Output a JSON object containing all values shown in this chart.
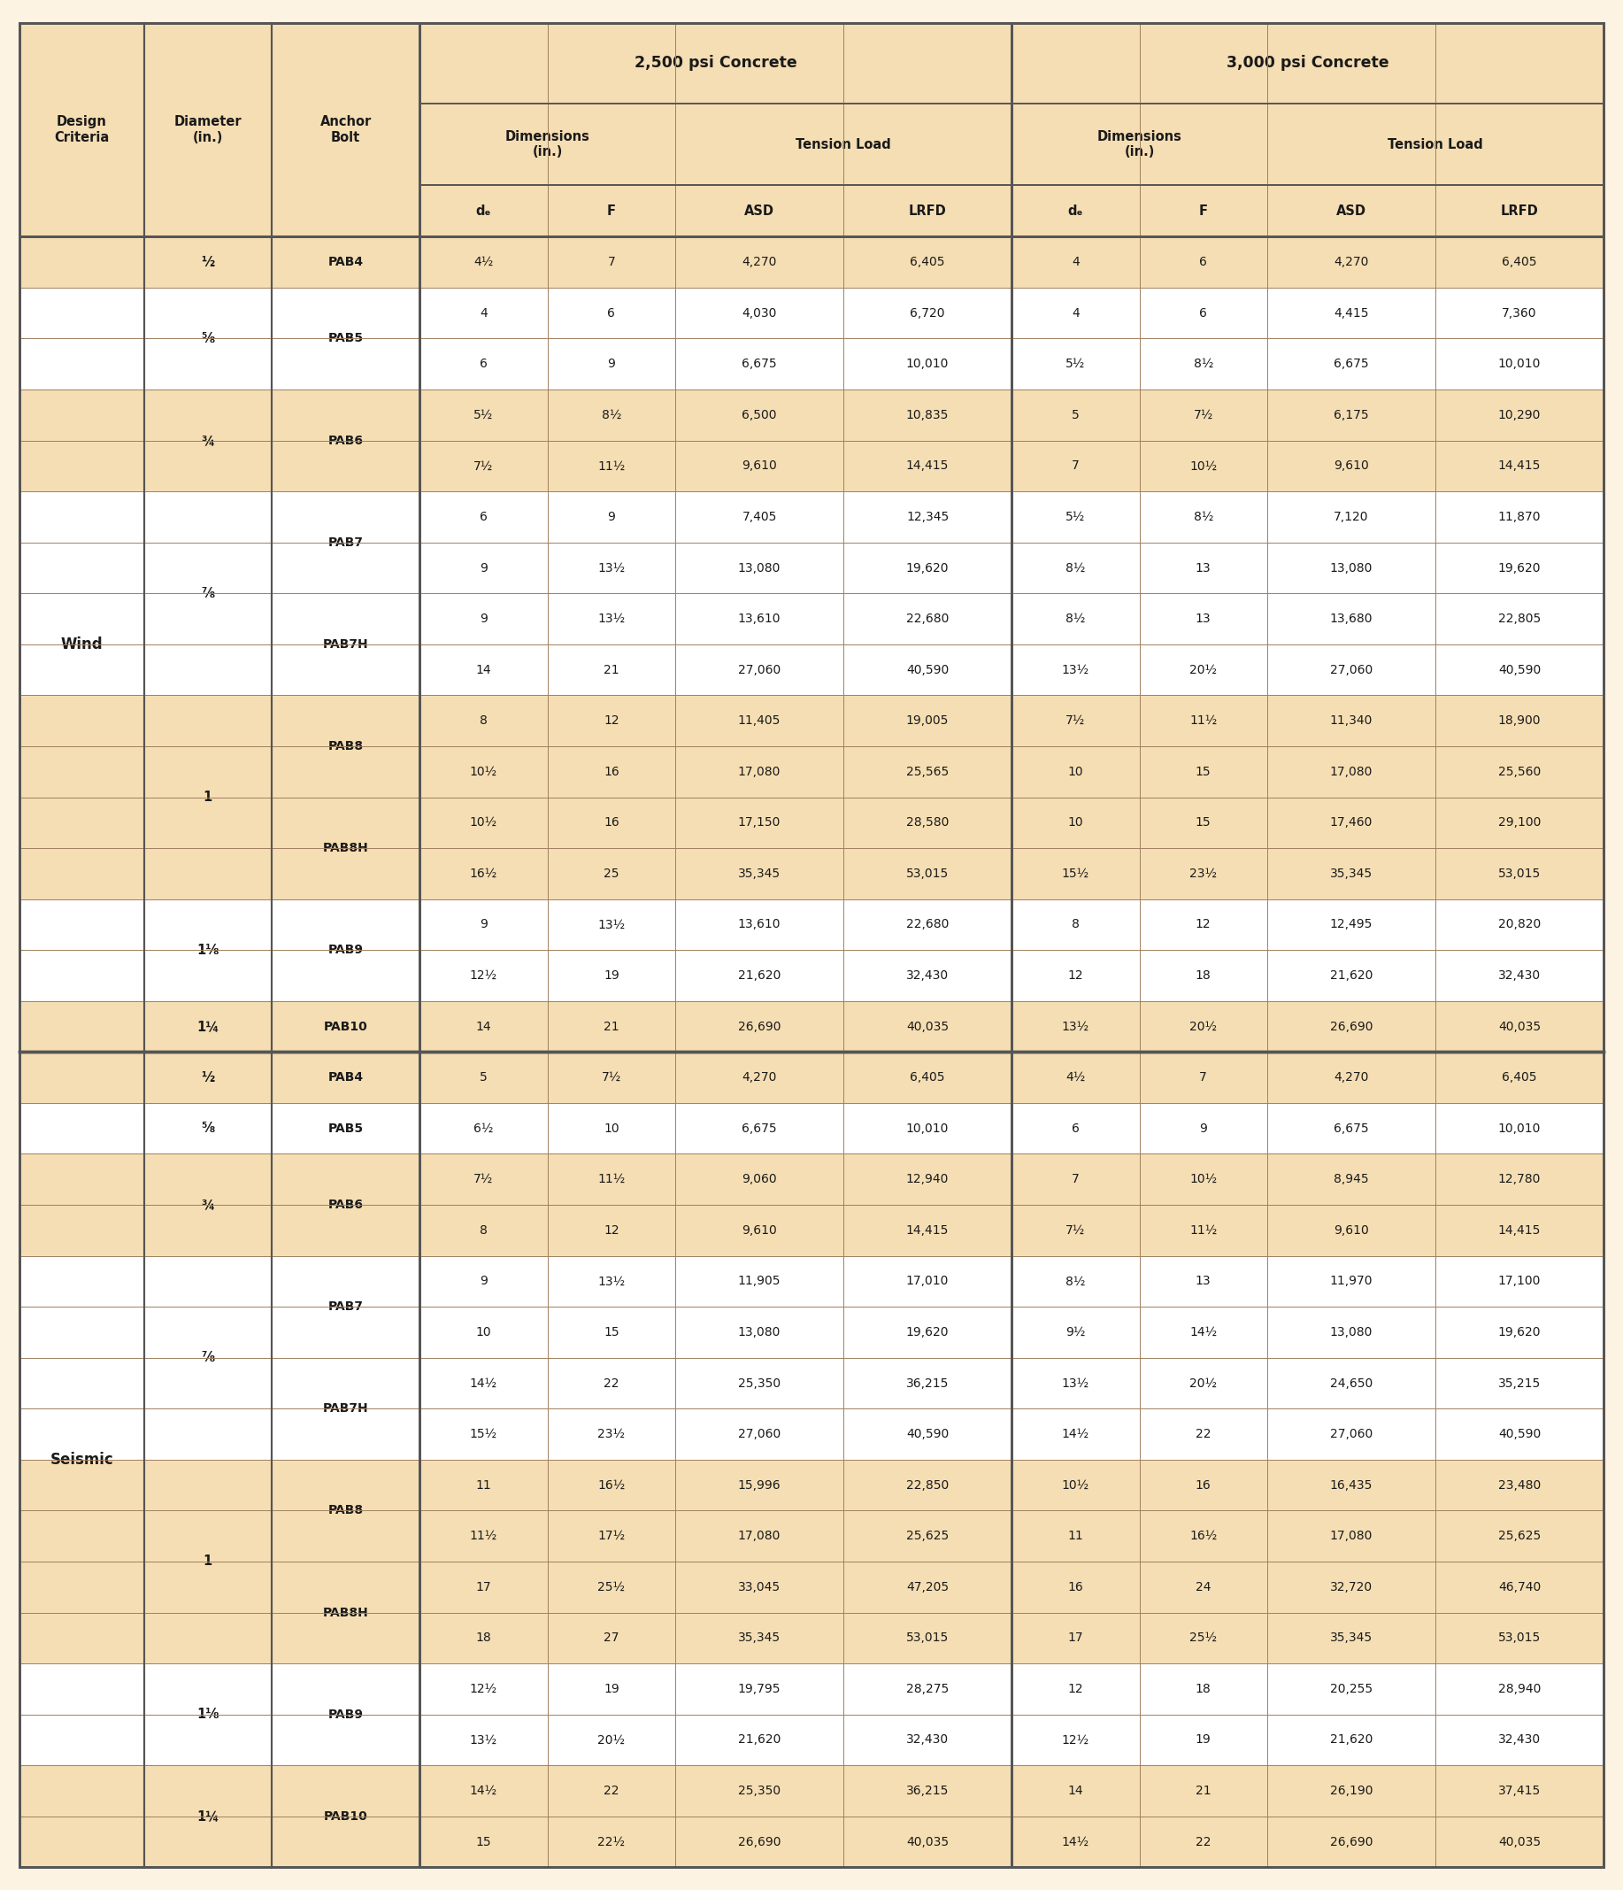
{
  "bg_color": "#fdf3e3",
  "header_bg": "#f5deb3",
  "white_row": "#ffffff",
  "tan_row": "#f5deb3",
  "border_thin": "#a08060",
  "border_thick": "#555555",
  "text_color": "#1a1a1a",
  "wind_rows": [
    [
      "4½",
      "7",
      "4,270",
      "6,405",
      "4",
      "6",
      "4,270",
      "6,405"
    ],
    [
      "4",
      "6",
      "4,030",
      "6,720",
      "4",
      "6",
      "4,415",
      "7,360"
    ],
    [
      "6",
      "9",
      "6,675",
      "10,010",
      "5½",
      "8½",
      "6,675",
      "10,010"
    ],
    [
      "5½",
      "8½",
      "6,500",
      "10,835",
      "5",
      "7½",
      "6,175",
      "10,290"
    ],
    [
      "7½",
      "11½",
      "9,610",
      "14,415",
      "7",
      "10½",
      "9,610",
      "14,415"
    ],
    [
      "6",
      "9",
      "7,405",
      "12,345",
      "5½",
      "8½",
      "7,120",
      "11,870"
    ],
    [
      "9",
      "13½",
      "13,080",
      "19,620",
      "8½",
      "13",
      "13,080",
      "19,620"
    ],
    [
      "9",
      "13½",
      "13,610",
      "22,680",
      "8½",
      "13",
      "13,680",
      "22,805"
    ],
    [
      "14",
      "21",
      "27,060",
      "40,590",
      "13½",
      "20½",
      "27,060",
      "40,590"
    ],
    [
      "8",
      "12",
      "11,405",
      "19,005",
      "7½",
      "11½",
      "11,340",
      "18,900"
    ],
    [
      "10½",
      "16",
      "17,080",
      "25,565",
      "10",
      "15",
      "17,080",
      "25,560"
    ],
    [
      "10½",
      "16",
      "17,150",
      "28,580",
      "10",
      "15",
      "17,460",
      "29,100"
    ],
    [
      "16½",
      "25",
      "35,345",
      "53,015",
      "15½",
      "23½",
      "35,345",
      "53,015"
    ],
    [
      "9",
      "13½",
      "13,610",
      "22,680",
      "8",
      "12",
      "12,495",
      "20,820"
    ],
    [
      "12½",
      "19",
      "21,620",
      "32,430",
      "12",
      "18",
      "21,620",
      "32,430"
    ],
    [
      "14",
      "21",
      "26,690",
      "40,035",
      "13½",
      "20½",
      "26,690",
      "40,035"
    ]
  ],
  "seismic_rows": [
    [
      "5",
      "7½",
      "4,270",
      "6,405",
      "4½",
      "7",
      "4,270",
      "6,405"
    ],
    [
      "6½",
      "10",
      "6,675",
      "10,010",
      "6",
      "9",
      "6,675",
      "10,010"
    ],
    [
      "7½",
      "11½",
      "9,060",
      "12,940",
      "7",
      "10½",
      "8,945",
      "12,780"
    ],
    [
      "8",
      "12",
      "9,610",
      "14,415",
      "7½",
      "11½",
      "9,610",
      "14,415"
    ],
    [
      "9",
      "13½",
      "11,905",
      "17,010",
      "8½",
      "13",
      "11,970",
      "17,100"
    ],
    [
      "10",
      "15",
      "13,080",
      "19,620",
      "9½",
      "14½",
      "13,080",
      "19,620"
    ],
    [
      "14½",
      "22",
      "25,350",
      "36,215",
      "13½",
      "20½",
      "24,650",
      "35,215"
    ],
    [
      "15½",
      "23½",
      "27,060",
      "40,590",
      "14½",
      "22",
      "27,060",
      "40,590"
    ],
    [
      "11",
      "16½",
      "15,996",
      "22,850",
      "10½",
      "16",
      "16,435",
      "23,480"
    ],
    [
      "11½",
      "17½",
      "17,080",
      "25,625",
      "11",
      "16½",
      "17,080",
      "25,625"
    ],
    [
      "17",
      "25½",
      "33,045",
      "47,205",
      "16",
      "24",
      "32,720",
      "46,740"
    ],
    [
      "18",
      "27",
      "35,345",
      "53,015",
      "17",
      "25½",
      "35,345",
      "53,015"
    ],
    [
      "12½",
      "19",
      "19,795",
      "28,275",
      "12",
      "18",
      "20,255",
      "28,940"
    ],
    [
      "13½",
      "20½",
      "21,620",
      "32,430",
      "12½",
      "19",
      "21,620",
      "32,430"
    ],
    [
      "14½",
      "22",
      "25,350",
      "36,215",
      "14",
      "21",
      "26,190",
      "37,415"
    ],
    [
      "15",
      "22½",
      "26,690",
      "40,035",
      "14½",
      "22",
      "26,690",
      "40,035"
    ]
  ],
  "wind_diam_groups": [
    [
      "½",
      0,
      0
    ],
    [
      "⅝",
      1,
      2
    ],
    [
      "¾",
      3,
      4
    ],
    [
      "⅞",
      5,
      8
    ],
    [
      "1",
      9,
      12
    ],
    [
      "1⅛",
      13,
      14
    ],
    [
      "1¼",
      15,
      15
    ]
  ],
  "wind_bolt_groups": [
    [
      "PAB4",
      0,
      0
    ],
    [
      "PAB5",
      1,
      2
    ],
    [
      "PAB6",
      3,
      4
    ],
    [
      "PAB7",
      5,
      6
    ],
    [
      "PAB7H",
      7,
      8
    ],
    [
      "PAB8",
      9,
      10
    ],
    [
      "PAB8H",
      11,
      12
    ],
    [
      "PAB9",
      13,
      14
    ],
    [
      "PAB10",
      15,
      15
    ]
  ],
  "seismic_diam_groups": [
    [
      "½",
      0,
      0
    ],
    [
      "⅝",
      1,
      1
    ],
    [
      "¾",
      2,
      3
    ],
    [
      "⅞",
      4,
      7
    ],
    [
      "1",
      8,
      11
    ],
    [
      "1⅛",
      12,
      13
    ],
    [
      "1¼",
      14,
      15
    ]
  ],
  "seismic_bolt_groups": [
    [
      "PAB4",
      0,
      0
    ],
    [
      "PAB5",
      1,
      1
    ],
    [
      "PAB6",
      2,
      3
    ],
    [
      "PAB7",
      4,
      5
    ],
    [
      "PAB7H",
      6,
      7
    ],
    [
      "PAB8",
      8,
      9
    ],
    [
      "PAB8H",
      10,
      11
    ],
    [
      "PAB9",
      12,
      13
    ],
    [
      "PAB10",
      14,
      15
    ]
  ],
  "wind_bg_pattern": [
    1,
    0,
    0,
    1,
    1,
    0,
    0,
    0,
    0,
    1,
    1,
    1,
    1,
    0,
    0,
    1
  ],
  "seismic_bg_pattern": [
    1,
    0,
    1,
    1,
    0,
    0,
    0,
    0,
    1,
    1,
    1,
    1,
    0,
    0,
    1,
    1
  ]
}
